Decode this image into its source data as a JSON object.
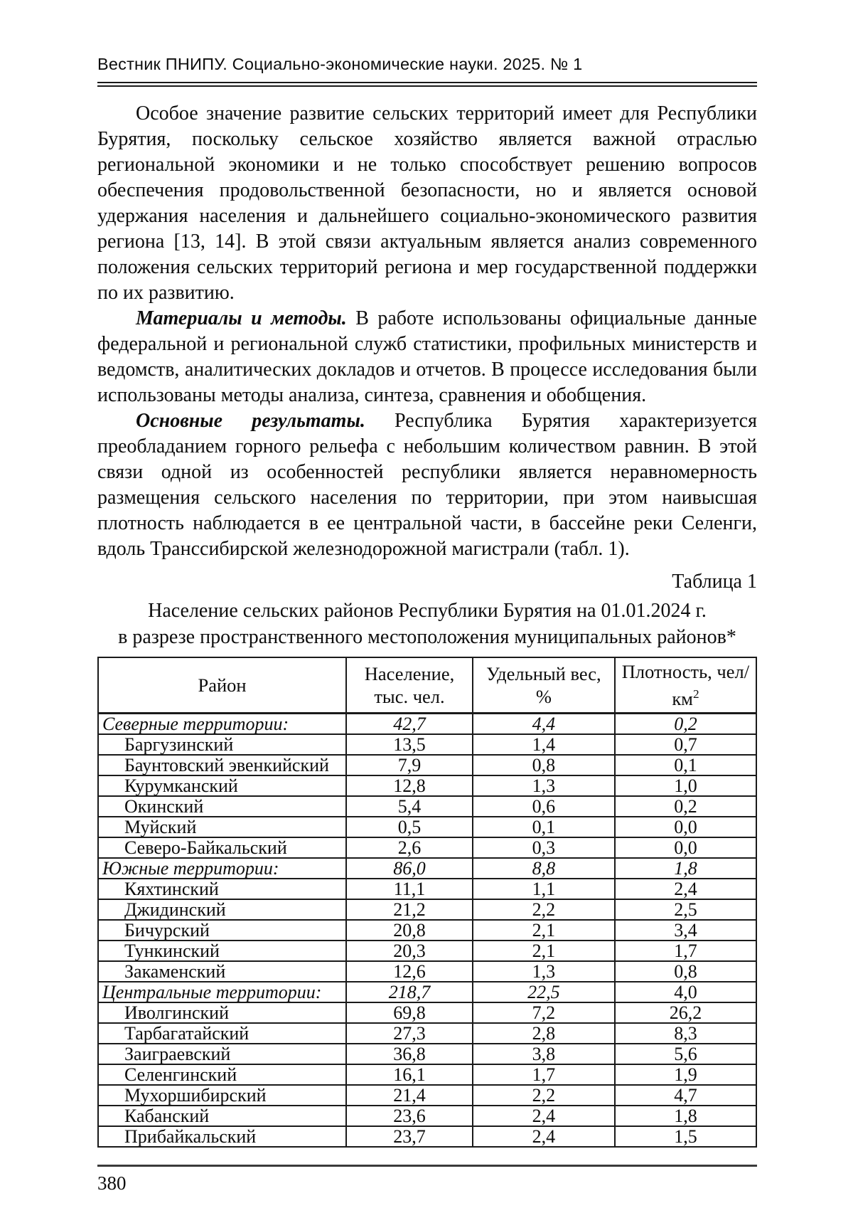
{
  "header": {
    "journal_line": "Вестник ПНИПУ. Социально-экономические науки. 2025. № 1"
  },
  "paragraphs": [
    {
      "lead": "",
      "text": "Особое значение развитие сельских территорий имеет для Республики Бурятия, поскольку сельское хозяйство является важной отраслью региональной экономики и не только способствует решению вопросов обеспечения продовольственной безопасности, но и является основой удержания населения и дальнейшего социально-экономического развития региона [13, 14]. В этой связи актуальным является анализ современного положения сельских территорий региона и мер государственной поддержки по их развитию."
    },
    {
      "lead": "Материалы и методы.",
      "text": " В работе использованы официальные данные федеральной и региональной служб статистики, профильных министерств и ведомств, аналитических докладов и отчетов. В процессе исследования были использованы методы анализа, синтеза, сравнения и обобщения."
    },
    {
      "lead": "Основные результаты.",
      "text": " Республика Бурятия характеризуется преобладанием горного рельефа с небольшим количеством равнин. В этой связи одной из особенностей республики является неравномерность размещения сельского населения по территории, при этом наивысшая плотность наблюдается в ее центральной части, в бассейне реки Селенги, вдоль Транссибирской железнодорожной магистрали (табл. 1)."
    }
  ],
  "table": {
    "label": "Таблица 1",
    "caption_line1": "Население сельских районов Республики Бурятия на 01.01.2024 г.",
    "caption_line2": "в разрезе пространственного местоположения муниципальных районов*",
    "columns": [
      {
        "title": "Район"
      },
      {
        "title": "Население, тыс. чел."
      },
      {
        "title": "Удельный вес, %"
      },
      {
        "title": "Плотность, чел/км",
        "sup": "2"
      }
    ],
    "rows": [
      {
        "label": "Северные территории:",
        "pop": "42,7",
        "share": "4,4",
        "dens": "0,2",
        "section": true
      },
      {
        "label": "Баргузинский",
        "pop": "13,5",
        "share": "1,4",
        "dens": "0,7"
      },
      {
        "label": "Баунтовский эвенкийский",
        "pop": "7,9",
        "share": "0,8",
        "dens": "0,1"
      },
      {
        "label": "Курумканский",
        "pop": "12,8",
        "share": "1,3",
        "dens": "1,0"
      },
      {
        "label": "Окинский",
        "pop": "5,4",
        "share": "0,6",
        "dens": "0,2"
      },
      {
        "label": "Муйский",
        "pop": "0,5",
        "share": "0,1",
        "dens": "0,0"
      },
      {
        "label": "Северо-Байкальский",
        "pop": "2,6",
        "share": "0,3",
        "dens": "0,0"
      },
      {
        "label": "Южные территории:",
        "pop": "86,0",
        "share": "8,8",
        "dens": "1,8",
        "section": true
      },
      {
        "label": "Кяхтинский",
        "pop": "11,1",
        "share": "1,1",
        "dens": "2,4"
      },
      {
        "label": "Джидинский",
        "pop": "21,2",
        "share": "2,2",
        "dens": "2,5"
      },
      {
        "label": "Бичурский",
        "pop": "20,8",
        "share": "2,1",
        "dens": "3,4"
      },
      {
        "label": "Тункинский",
        "pop": "20,3",
        "share": "2,1",
        "dens": "1,7"
      },
      {
        "label": "Закаменский",
        "pop": "12,6",
        "share": "1,3",
        "dens": "0,8"
      },
      {
        "label": "Центральные территории:",
        "pop": "218,7",
        "share": "22,5",
        "dens": "4,0",
        "section": true,
        "dens_upright": true
      },
      {
        "label": "Иволгинский",
        "pop": "69,8",
        "share": "7,2",
        "dens": "26,2"
      },
      {
        "label": "Тарбагатайский",
        "pop": "27,3",
        "share": "2,8",
        "dens": "8,3"
      },
      {
        "label": "Заиграевский",
        "pop": "36,8",
        "share": "3,8",
        "dens": "5,6"
      },
      {
        "label": "Селенгинский",
        "pop": "16,1",
        "share": "1,7",
        "dens": "1,9"
      },
      {
        "label": "Мухоршибирский",
        "pop": "21,4",
        "share": "2,2",
        "dens": "4,7"
      },
      {
        "label": "Кабанский",
        "pop": "23,6",
        "share": "2,4",
        "dens": "1,8"
      },
      {
        "label": "Прибайкальский",
        "pop": "23,7",
        "share": "2,4",
        "dens": "1,5"
      }
    ]
  },
  "footer": {
    "page_number": "380"
  }
}
